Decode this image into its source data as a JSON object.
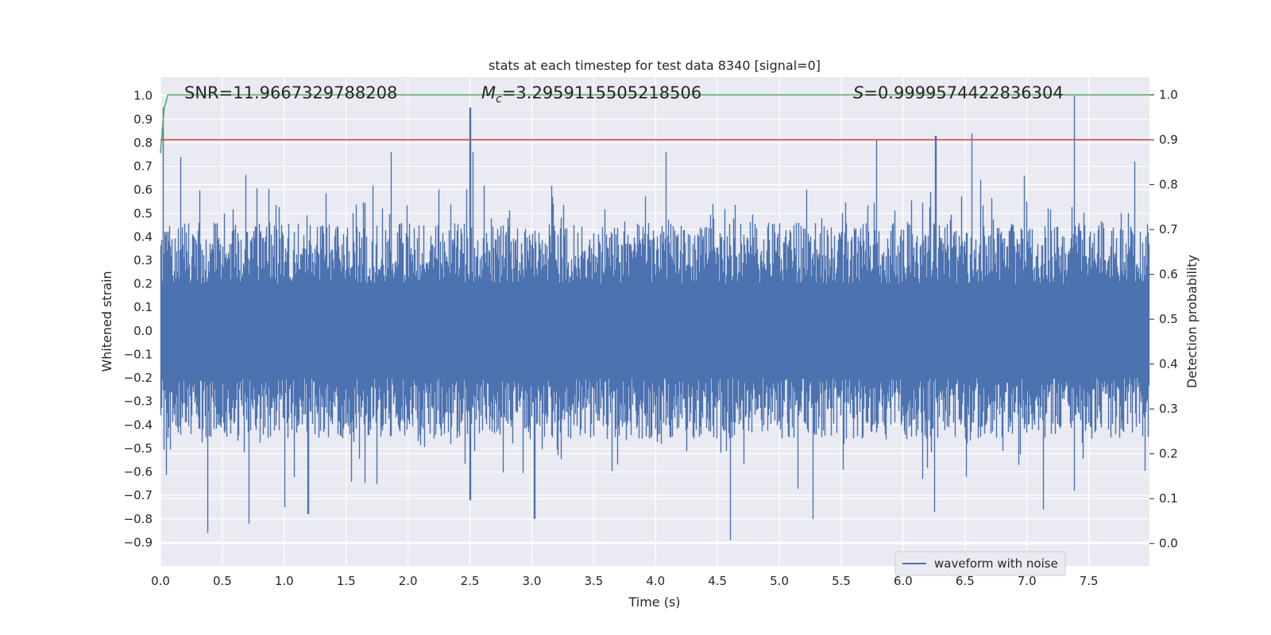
{
  "chart_data": {
    "type": "line",
    "title": "stats at each timestep for test data 8340 [signal=0]",
    "xlabel": "Time (s)",
    "ylabel_left": "Whitened strain",
    "ylabel_right": "Detection probability",
    "xlim": [
      0.0,
      7.99
    ],
    "ylim_left": [
      -1.0,
      1.08
    ],
    "ylim_right": [
      -0.05,
      1.04
    ],
    "x_ticks": [
      "0.0",
      "0.5",
      "1.0",
      "1.5",
      "2.0",
      "2.5",
      "3.0",
      "3.5",
      "4.0",
      "4.5",
      "5.0",
      "5.5",
      "6.0",
      "6.5",
      "7.0",
      "7.5"
    ],
    "y_left_ticks": [
      "−0.9",
      "−0.8",
      "−0.7",
      "−0.6",
      "−0.5",
      "−0.4",
      "−0.3",
      "−0.2",
      "−0.1",
      "0.0",
      "0.1",
      "0.2",
      "0.3",
      "0.4",
      "0.5",
      "0.6",
      "0.7",
      "0.8",
      "0.9",
      "1.0"
    ],
    "y_right_ticks": [
      "0.0",
      "0.1",
      "0.2",
      "0.3",
      "0.4",
      "0.5",
      "0.6",
      "0.7",
      "0.8",
      "0.9",
      "1.0"
    ],
    "annotations": {
      "snr": "SNR=11.9667329788208",
      "mc_symbol": "M",
      "mc_sub": "c",
      "mc_value": "=3.2959115505218506",
      "s_symbol": "S",
      "s_value": "=0.9999574422836304"
    },
    "legend": {
      "entries": [
        "waveform with noise"
      ],
      "placement": "lower-right"
    },
    "grid": true,
    "series": [
      {
        "name": "waveform with noise",
        "axis": "left",
        "color": "#4c72b0",
        "envelope": "dense noise filling roughly -0.45..0.45 with spikes up to about 1.0 (near t=7.38) and down to about -0.89 (near t=4.6)",
        "notable_peaks": [
          {
            "x": 0.02,
            "y": 0.95
          },
          {
            "x": 0.16,
            "y": 0.74
          },
          {
            "x": 1.86,
            "y": 0.76
          },
          {
            "x": 2.5,
            "y": 0.95
          },
          {
            "x": 2.52,
            "y": 0.76
          },
          {
            "x": 4.08,
            "y": 0.76
          },
          {
            "x": 5.78,
            "y": 0.81
          },
          {
            "x": 6.26,
            "y": 0.83
          },
          {
            "x": 6.55,
            "y": 0.84
          },
          {
            "x": 7.38,
            "y": 1.0
          },
          {
            "x": 7.87,
            "y": 0.72
          }
        ],
        "notable_troughs": [
          {
            "x": 0.38,
            "y": -0.86
          },
          {
            "x": 0.71,
            "y": -0.82
          },
          {
            "x": 1.0,
            "y": -0.75
          },
          {
            "x": 1.19,
            "y": -0.78
          },
          {
            "x": 2.5,
            "y": -0.72
          },
          {
            "x": 3.02,
            "y": -0.8
          },
          {
            "x": 4.6,
            "y": -0.89
          },
          {
            "x": 5.27,
            "y": -0.8
          },
          {
            "x": 6.25,
            "y": -0.77
          },
          {
            "x": 7.13,
            "y": -0.76
          },
          {
            "x": 7.38,
            "y": -0.68
          }
        ]
      },
      {
        "name": "",
        "axis": "right",
        "color": "#55a868",
        "x": [
          0.0,
          0.03,
          0.06,
          7.99
        ],
        "y": [
          0.87,
          0.97,
          1.0,
          1.0
        ]
      },
      {
        "name": "",
        "axis": "right",
        "color": "#c44e52",
        "x": [
          0.0,
          7.99
        ],
        "y": [
          0.9,
          0.9
        ]
      }
    ]
  }
}
